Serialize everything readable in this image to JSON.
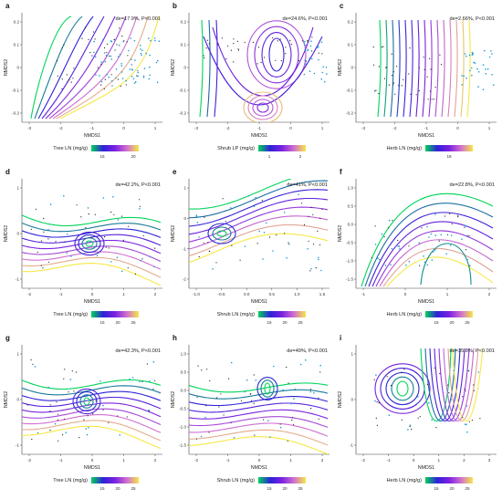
{
  "colors": {
    "scale": [
      "#00d45a",
      "#2e22d8",
      "#7a22e0",
      "#d06fd0",
      "#f5e845"
    ],
    "points_dark": "#1a1a1a",
    "points_blue": "#1a9ad6"
  },
  "chart_data": [
    {
      "type": "contour",
      "panel": "a",
      "annotation": "de=17.9%, P<0.001",
      "xlabel": "NMDS1",
      "ylabel": "NMDS2",
      "xticks": [
        "-3",
        "-2",
        "-1",
        "0",
        "1"
      ],
      "yticks": [
        "-0.2",
        "-0.1",
        "0",
        "0.1",
        "0.2"
      ],
      "legend_title": "Tree LN (mg/g)",
      "legend_ticks": [
        "15",
        "20"
      ],
      "xlim": [
        -3.3,
        1.5
      ],
      "ylim": [
        -0.28,
        0.32
      ]
    },
    {
      "type": "contour",
      "panel": "b",
      "annotation": "de=24.6%, P<0.001",
      "xlabel": "NMDS1",
      "ylabel": "NMDS2",
      "xticks": [
        "-3",
        "-2",
        "-1",
        "0",
        "1"
      ],
      "yticks": [
        "-0.2",
        "-0.1",
        "0",
        "0.1",
        "0.2"
      ],
      "legend_title": "Shrub LP (mg/g)",
      "legend_ticks": [
        "1",
        "2"
      ],
      "xlim": [
        -3.3,
        1.5
      ],
      "ylim": [
        -0.28,
        0.32
      ]
    },
    {
      "type": "contour",
      "panel": "c",
      "annotation": "de=2.66%, P<0.001",
      "xlabel": "NMDS1",
      "ylabel": "NMDS2",
      "xticks": [
        "-3",
        "-2",
        "-1",
        "0",
        "1"
      ],
      "yticks": [
        "-0.2",
        "-0.1",
        "0",
        "0.1",
        "0.2"
      ],
      "legend_title": "Herb LN (mg/g)",
      "legend_ticks": [
        "18"
      ],
      "xlim": [
        -3.3,
        1.5
      ],
      "ylim": [
        -0.28,
        0.32
      ]
    },
    {
      "type": "contour",
      "panel": "d",
      "annotation": "de=42.2%, P<0.001",
      "xlabel": "NMDS1",
      "ylabel": "NMDS2",
      "xticks": [
        "-2",
        "-1",
        "0",
        "1",
        "2"
      ],
      "yticks": [
        "-1",
        "0",
        "1"
      ],
      "legend_title": "Tree LN (mg/g)",
      "legend_ticks": [
        "15",
        "20",
        "25"
      ],
      "xlim": [
        -2.4,
        2.6
      ],
      "ylim": [
        -1.6,
        1.6
      ]
    },
    {
      "type": "contour",
      "panel": "e",
      "annotation": "de=41%, P<0.001",
      "xlabel": "NMDS1",
      "ylabel": "NMDS2",
      "xticks": [
        "-1.0",
        "-0.5",
        "0.0",
        "0.5",
        "1.0",
        "1.5"
      ],
      "yticks": [
        "-2",
        "-1",
        "0",
        "1"
      ],
      "legend_title": "Shrub LN (mg/g)",
      "legend_ticks": [
        "15",
        "20",
        "25"
      ],
      "xlim": [
        -1.1,
        1.6
      ],
      "ylim": [
        -2.4,
        1.9
      ]
    },
    {
      "type": "contour",
      "panel": "f",
      "annotation": "de=22.8%, P<0.001",
      "xlabel": "NMDS1",
      "ylabel": "NMDS2",
      "xticks": [
        "-1",
        "0",
        "1",
        "2"
      ],
      "yticks": [
        "-1.5",
        "-1.0",
        "-0.5",
        "0.0",
        "0.5",
        "1.0"
      ],
      "legend_title": "Herb LN (mg/g)",
      "legend_ticks": [
        "15",
        "20",
        "25"
      ],
      "xlim": [
        -1.6,
        2.8
      ],
      "ylim": [
        -1.6,
        1.3
      ]
    },
    {
      "type": "contour",
      "panel": "g",
      "annotation": "de=42.3%, P<0.001",
      "xlabel": "NMDS1",
      "ylabel": "NMDS2",
      "xticks": [
        "-2",
        "-1",
        "0",
        "1",
        "2"
      ],
      "yticks": [
        "-1",
        "0",
        "1"
      ],
      "legend_title": "Tree LN (mg/g)",
      "legend_ticks": [
        "15",
        "20",
        "25"
      ],
      "xlim": [
        -2.4,
        2.6
      ],
      "ylim": [
        -1.6,
        1.6
      ]
    },
    {
      "type": "contour",
      "panel": "h",
      "annotation": "de=49%, P<0.001",
      "xlabel": "NMDS1",
      "ylabel": "NMDS2",
      "xticks": [
        "-2",
        "-1",
        "0",
        "1",
        "2"
      ],
      "yticks": [
        "-1.5",
        "-1.0",
        "-0.5",
        "0.0",
        "0.5",
        "1.0"
      ],
      "legend_title": "Shrub LN (mg/g)",
      "legend_ticks": [
        "15",
        "20",
        "25"
      ],
      "xlim": [
        -2.4,
        2.4
      ],
      "ylim": [
        -1.6,
        1.3
      ]
    },
    {
      "type": "contour",
      "panel": "i",
      "annotation": "de=35.8%, P<0.001",
      "xlabel": "NMDS1",
      "ylabel": "NMDS2",
      "xticks": [
        "-2",
        "-1",
        "0",
        "1",
        "2",
        "3"
      ],
      "yticks": [
        "-1",
        "0",
        "1"
      ],
      "legend_title": "Herb LN (mg/g)",
      "legend_ticks": [
        "15",
        "20",
        "25"
      ],
      "xlim": [
        -2.4,
        3.2
      ],
      "ylim": [
        -1.6,
        1.6
      ]
    }
  ]
}
